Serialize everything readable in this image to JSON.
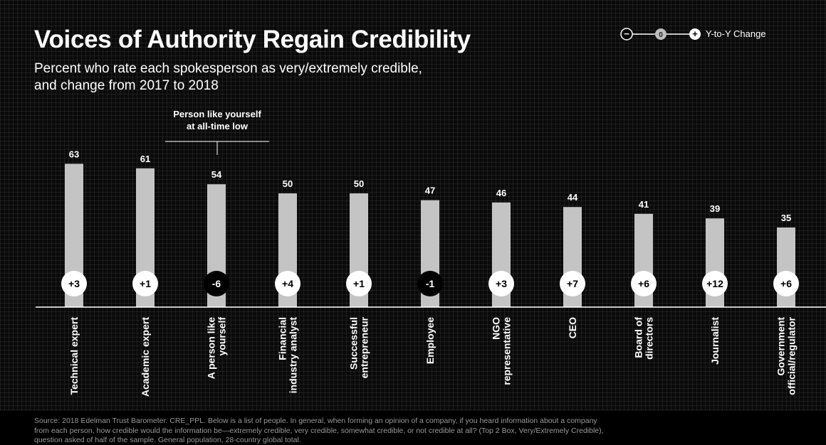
{
  "title": "Voices of Authority Regain Credibility",
  "subtitle_line1": "Percent who rate each spokesperson as very/extremely credible,",
  "subtitle_line2": "and change from 2017 to 2018",
  "legend": {
    "minus": "−",
    "zero": "0",
    "plus": "+",
    "label": "Y-to-Y Change"
  },
  "annotation": "Person like yourself\nat all-time low",
  "source_note": "Source: 2018 Edelman Trust Barometer. CRE_PPL. Below is a list of people. In general, when forming an opinion of a company, if you heard information about a company from each person, how credible would the information be—extremely credible, very credible, somewhat credible, or not credible at all? (Top 2 Box, Very/Extremely Credible), question asked of half of the sample. General population, 28-country global total.",
  "colors": {
    "background": "#0a0a0a",
    "bar": "#c4c4c4",
    "positive_circle": "#ffffff",
    "negative_circle": "#000000",
    "text": "#ffffff"
  },
  "chart_data": {
    "type": "bar",
    "categories": [
      [
        "Technical expert"
      ],
      [
        "Academic expert"
      ],
      [
        "A person like",
        "yourself"
      ],
      [
        "Financial",
        "industry analyst"
      ],
      [
        "Successful",
        "entrepreneur"
      ],
      [
        "Employee"
      ],
      [
        "NGO",
        "representative"
      ],
      [
        "CEO"
      ],
      [
        "Board of",
        "directors"
      ],
      [
        "Journalist"
      ],
      [
        "Government",
        "official/regulator"
      ]
    ],
    "values": [
      63,
      61,
      54,
      50,
      50,
      47,
      46,
      44,
      41,
      39,
      35
    ],
    "changes": [
      "+3",
      "+1",
      "-6",
      "+4",
      "+1",
      "-1",
      "+3",
      "+7",
      "+6",
      "+12",
      "+6"
    ],
    "ylim": [
      0,
      100
    ],
    "grid": true
  }
}
